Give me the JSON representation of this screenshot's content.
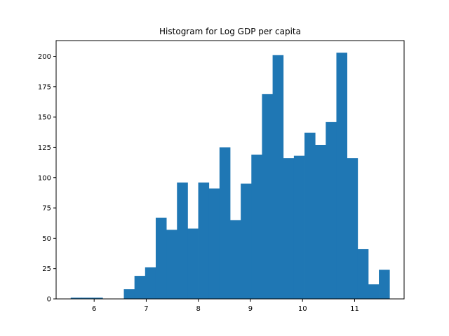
{
  "chart_data": {
    "type": "bar",
    "title": "Histogram for Log GDP per capita",
    "xlabel": "",
    "ylabel": "",
    "xlim": [
      5.27,
      11.95
    ],
    "ylim": [
      0,
      213
    ],
    "xticks": [
      6,
      7,
      8,
      9,
      10,
      11
    ],
    "yticks": [
      0,
      25,
      50,
      75,
      100,
      125,
      150,
      175,
      200
    ],
    "bin_start": 5.55,
    "bin_width": 0.204,
    "values": [
      1,
      1,
      1,
      0,
      0,
      8,
      19,
      26,
      67,
      57,
      96,
      58,
      96,
      91,
      125,
      65,
      95,
      119,
      169,
      201,
      116,
      118,
      137,
      127,
      146,
      203,
      116,
      41,
      12,
      24
    ],
    "bar_color": "#1f77b4",
    "grid": false,
    "legend": "none"
  }
}
